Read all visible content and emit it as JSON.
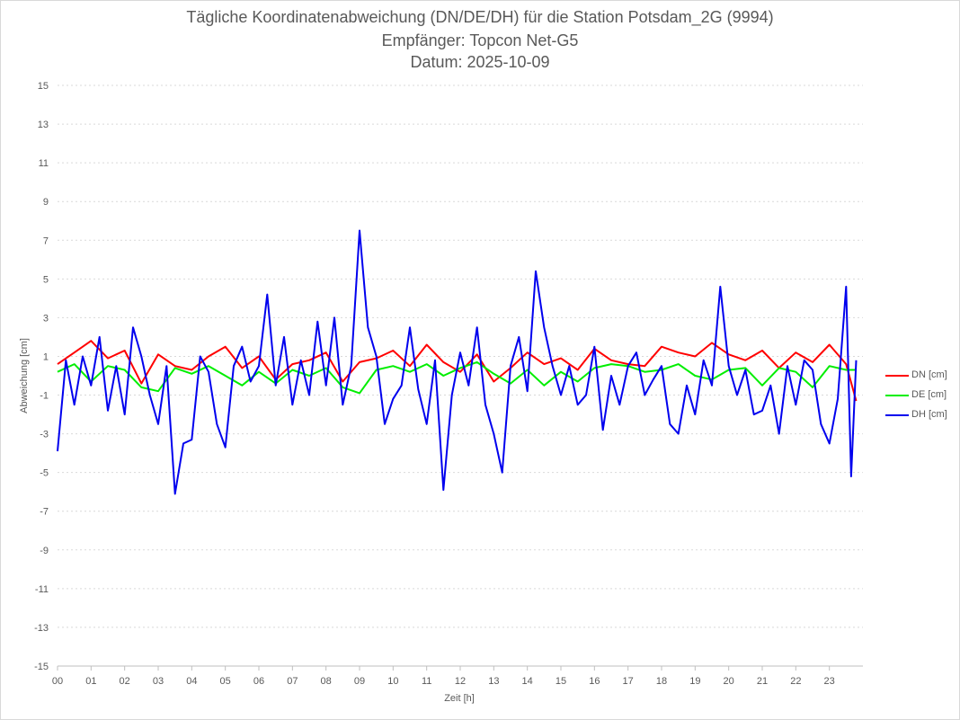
{
  "chart_data": {
    "type": "line",
    "title": "Tägliche Koordinatenabweichung (DN/DE/DH) für die Station Potsdam_2G (9994)",
    "subtitle_lines": [
      "Empfänger: Topcon Net-G5",
      "Datum: 2025-10-09"
    ],
    "xlabel": "Zeit [h]",
    "ylabel": "Abweichung [cm]",
    "ylim": [
      -15,
      15
    ],
    "xlim": [
      0,
      24
    ],
    "y_ticks": [
      "15",
      "13",
      "11",
      "9",
      "7",
      "5",
      "3",
      "1",
      "-1",
      "-3",
      "-5",
      "-7",
      "-9",
      "-11",
      "-13",
      "-15"
    ],
    "x_ticks": [
      "00",
      "01",
      "02",
      "03",
      "04",
      "05",
      "06",
      "07",
      "08",
      "09",
      "10",
      "11",
      "12",
      "13",
      "14",
      "15",
      "16",
      "17",
      "18",
      "19",
      "20",
      "21",
      "22",
      "23"
    ],
    "grid": true,
    "legend_position": "right",
    "series": [
      {
        "name": "DN [cm]",
        "color": "#ff0000",
        "x": [
          0,
          0.5,
          1,
          1.5,
          2,
          2.5,
          3,
          3.5,
          4,
          4.5,
          5,
          5.5,
          6,
          6.5,
          7,
          7.5,
          8,
          8.5,
          9,
          9.5,
          10,
          10.5,
          11,
          11.5,
          12,
          12.5,
          13,
          13.5,
          14,
          14.5,
          15,
          15.5,
          16,
          16.5,
          17,
          17.5,
          18,
          18.5,
          19,
          19.5,
          20,
          20.5,
          21,
          21.5,
          22,
          22.5,
          23,
          23.5,
          23.8
        ],
        "values": [
          0.6,
          1.2,
          1.8,
          0.9,
          1.3,
          -0.4,
          1.1,
          0.5,
          0.3,
          1.0,
          1.5,
          0.4,
          1.0,
          -0.2,
          0.6,
          0.8,
          1.2,
          -0.3,
          0.7,
          0.9,
          1.3,
          0.5,
          1.6,
          0.7,
          0.2,
          1.1,
          -0.3,
          0.4,
          1.2,
          0.6,
          0.9,
          0.3,
          1.4,
          0.8,
          0.6,
          0.5,
          1.5,
          1.2,
          1.0,
          1.7,
          1.1,
          0.8,
          1.3,
          0.4,
          1.2,
          0.7,
          1.6,
          0.6,
          -1.3
        ]
      },
      {
        "name": "DE [cm]",
        "color": "#00ee00",
        "x": [
          0,
          0.5,
          1,
          1.5,
          2,
          2.5,
          3,
          3.5,
          4,
          4.5,
          5,
          5.5,
          6,
          6.5,
          7,
          7.5,
          8,
          8.5,
          9,
          9.5,
          10,
          10.5,
          11,
          11.5,
          12,
          12.5,
          13,
          13.5,
          14,
          14.5,
          15,
          15.5,
          16,
          16.5,
          17,
          17.5,
          18,
          18.5,
          19,
          19.5,
          20,
          20.5,
          21,
          21.5,
          22,
          22.5,
          23,
          23.5,
          23.8
        ],
        "values": [
          0.2,
          0.6,
          -0.3,
          0.5,
          0.3,
          -0.6,
          -0.8,
          0.4,
          0.1,
          0.5,
          0.0,
          -0.5,
          0.2,
          -0.4,
          0.3,
          0.0,
          0.4,
          -0.6,
          -0.9,
          0.3,
          0.5,
          0.2,
          0.6,
          0.0,
          0.4,
          0.7,
          0.1,
          -0.4,
          0.3,
          -0.5,
          0.2,
          -0.3,
          0.4,
          0.6,
          0.5,
          0.2,
          0.3,
          0.6,
          0.0,
          -0.2,
          0.3,
          0.4,
          -0.5,
          0.4,
          0.2,
          -0.6,
          0.5,
          0.3,
          0.3
        ]
      },
      {
        "name": "DH [cm]",
        "color": "#0000ee",
        "x": [
          0,
          0.25,
          0.5,
          0.75,
          1,
          1.25,
          1.5,
          1.75,
          2,
          2.25,
          2.5,
          2.75,
          3,
          3.25,
          3.5,
          3.75,
          4,
          4.25,
          4.5,
          4.75,
          5,
          5.25,
          5.5,
          5.75,
          6,
          6.25,
          6.5,
          6.75,
          7,
          7.25,
          7.5,
          7.75,
          8,
          8.25,
          8.5,
          8.75,
          9,
          9.25,
          9.5,
          9.75,
          10,
          10.25,
          10.5,
          10.75,
          11,
          11.25,
          11.5,
          11.75,
          12,
          12.25,
          12.5,
          12.75,
          13,
          13.25,
          13.5,
          13.75,
          14,
          14.25,
          14.5,
          14.75,
          15,
          15.25,
          15.5,
          15.75,
          16,
          16.25,
          16.5,
          16.75,
          17,
          17.25,
          17.5,
          17.75,
          18,
          18.25,
          18.5,
          18.75,
          19,
          19.25,
          19.5,
          19.75,
          20,
          20.25,
          20.5,
          20.75,
          21,
          21.25,
          21.5,
          21.75,
          22,
          22.25,
          22.5,
          22.75,
          23,
          23.25,
          23.5,
          23.65,
          23.8
        ],
        "values": [
          -3.9,
          0.8,
          -1.5,
          1.0,
          -0.5,
          2.0,
          -1.8,
          0.5,
          -2.0,
          2.5,
          1.0,
          -1.0,
          -2.5,
          0.5,
          -6.1,
          -3.5,
          -3.3,
          1.0,
          0.2,
          -2.5,
          -3.7,
          0.5,
          1.5,
          -0.3,
          0.5,
          4.2,
          -0.5,
          2.0,
          -1.5,
          0.8,
          -1.0,
          2.8,
          -0.5,
          3.0,
          -1.5,
          0.5,
          7.5,
          2.5,
          1.0,
          -2.5,
          -1.2,
          -0.5,
          2.5,
          -0.7,
          -2.5,
          0.8,
          -5.9,
          -1.0,
          1.2,
          -0.5,
          2.5,
          -1.5,
          -3.0,
          -5.0,
          0.5,
          2.0,
          -0.8,
          5.4,
          2.5,
          0.5,
          -1.0,
          0.5,
          -1.5,
          -1.0,
          1.5,
          -2.8,
          0.0,
          -1.5,
          0.5,
          1.2,
          -1.0,
          -0.2,
          0.5,
          -2.5,
          -3.0,
          -0.5,
          -2.0,
          0.8,
          -0.5,
          4.6,
          0.5,
          -1.0,
          0.3,
          -2.0,
          -1.8,
          -0.5,
          -3.0,
          0.5,
          -1.5,
          0.8,
          0.3,
          -2.5,
          -3.5,
          -1.2,
          4.6,
          -5.2,
          0.8
        ]
      }
    ]
  }
}
